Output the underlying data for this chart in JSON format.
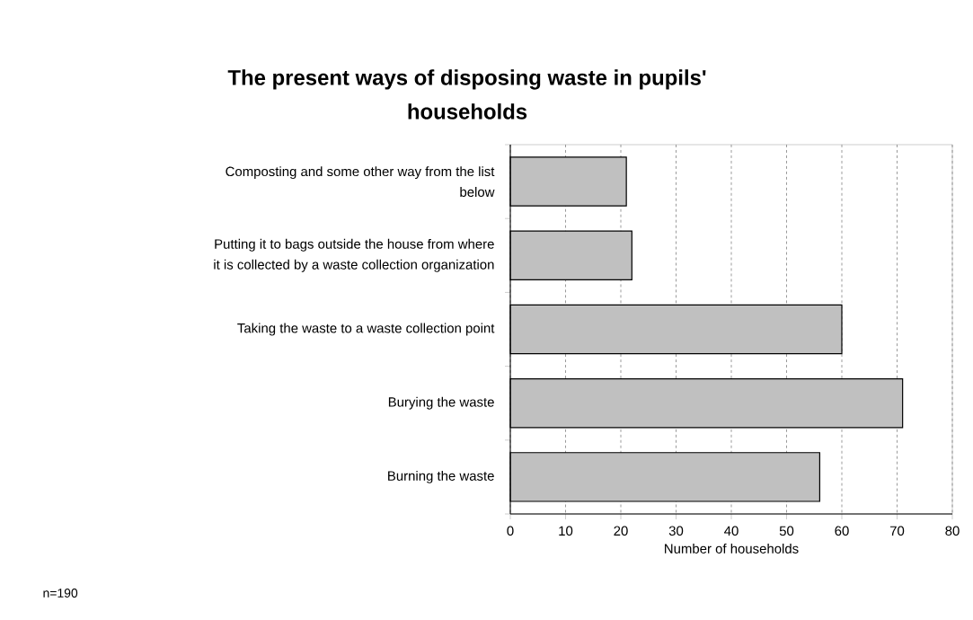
{
  "chart_data": {
    "type": "bar",
    "orientation": "horizontal",
    "title": "The present ways of disposing waste in pupils' households",
    "xlabel": "Number of households",
    "categories": [
      "Composting and some other way from the list below",
      "Putting it to bags outside the house from where it is collected by a waste collection organization",
      "Taking the waste to a waste collection point",
      "Burying the waste",
      "Burning the waste"
    ],
    "values": [
      21,
      22,
      60,
      71,
      56
    ],
    "color": "#c0c0c0",
    "xlim": [
      0,
      80
    ],
    "xticks": [
      0,
      10,
      20,
      30,
      40,
      50,
      60,
      70,
      80
    ],
    "grid": "x",
    "annotations": [
      "n=190"
    ]
  }
}
